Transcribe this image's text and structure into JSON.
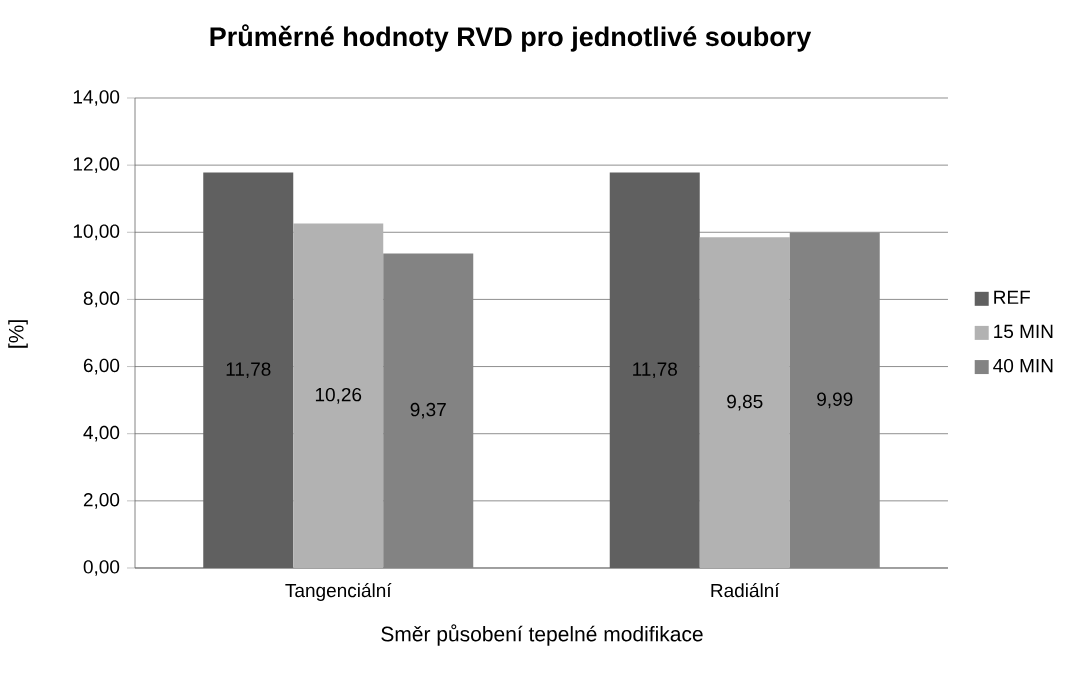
{
  "chart_data": {
    "type": "bar",
    "title": "Průměrné hodnoty RVD pro jednotlivé soubory",
    "xlabel": "Směr působení tepelné modifikace",
    "ylabel": "[%]",
    "categories": [
      "Tangenciální",
      "Radiální"
    ],
    "series": [
      {
        "name": "REF",
        "color": "#606060",
        "values": [
          11.78,
          11.78
        ],
        "value_labels": [
          "11,78",
          "11,78"
        ]
      },
      {
        "name": "15 MIN",
        "color": "#b2b2b2",
        "values": [
          10.26,
          9.85
        ],
        "value_labels": [
          "10,26",
          "9,85"
        ]
      },
      {
        "name": "40 MIN",
        "color": "#838383",
        "values": [
          9.37,
          9.99
        ],
        "value_labels": [
          "9,37",
          "9,99"
        ]
      }
    ],
    "ylim": [
      0,
      14
    ],
    "yticks": [
      {
        "value": 0,
        "label": "0,00"
      },
      {
        "value": 2,
        "label": "2,00"
      },
      {
        "value": 4,
        "label": "4,00"
      },
      {
        "value": 6,
        "label": "6,00"
      },
      {
        "value": 8,
        "label": "8,00"
      },
      {
        "value": 10,
        "label": "10,00"
      },
      {
        "value": 12,
        "label": "12,00"
      },
      {
        "value": 14,
        "label": "14,00"
      }
    ],
    "grid": "y",
    "legend": "right"
  }
}
